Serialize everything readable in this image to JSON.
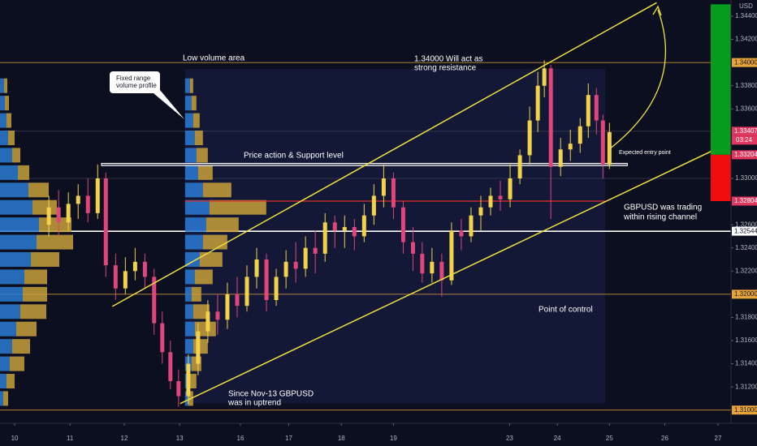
{
  "chart_data": {
    "type": "candlestick",
    "currency": "USD",
    "countdown": "03:24",
    "xlim": [
      -0.27,
      13.2
    ],
    "ylim": [
      1.309,
      1.3454
    ],
    "xticks": [
      {
        "value": 0,
        "label": "10"
      },
      {
        "value": 1.02,
        "label": "11"
      },
      {
        "value": 2.02,
        "label": "12"
      },
      {
        "value": 3.04,
        "label": "13"
      },
      {
        "value": 4.16,
        "label": "16"
      },
      {
        "value": 5.05,
        "label": "17"
      },
      {
        "value": 6.02,
        "label": "18"
      },
      {
        "value": 6.98,
        "label": "19"
      },
      {
        "value": 9.12,
        "label": "23"
      },
      {
        "value": 10.0,
        "label": "24"
      },
      {
        "value": 10.96,
        "label": "25"
      },
      {
        "value": 11.98,
        "label": "26"
      },
      {
        "value": 12.96,
        "label": "27"
      }
    ],
    "yticks": [
      {
        "value": 1.344,
        "label": "1.34400"
      },
      {
        "value": 1.342,
        "label": "1.34200"
      },
      {
        "value": 1.338,
        "label": "1.33800"
      },
      {
        "value": 1.336,
        "label": "1.33600"
      },
      {
        "value": 1.33,
        "label": "1.33000"
      },
      {
        "value": 1.326,
        "label": "1.32600"
      },
      {
        "value": 1.324,
        "label": "1.32400"
      },
      {
        "value": 1.322,
        "label": "1.32200"
      },
      {
        "value": 1.318,
        "label": "1.31800"
      },
      {
        "value": 1.316,
        "label": "1.31600"
      },
      {
        "value": 1.314,
        "label": "1.31400"
      },
      {
        "value": 1.312,
        "label": "1.31200"
      }
    ],
    "price_tags": [
      {
        "value": 1.34,
        "label": "1.34000",
        "color": "#e8a33a"
      },
      {
        "value": 1.33407,
        "label": "1.33407",
        "color": "#e0365f"
      },
      {
        "value": 1.33204,
        "label": "1.33204",
        "color": "#e0365f"
      },
      {
        "value": 1.32804,
        "label": "1.32804",
        "color": "#e0365f"
      },
      {
        "value": 1.32544,
        "label": "1.32544",
        "color": "#ffffff"
      },
      {
        "value": 1.32,
        "label": "1.32000",
        "color": "#e8a33a"
      },
      {
        "value": 1.31,
        "label": "1.31000",
        "color": "#e8a33a"
      }
    ],
    "up_color": "#f2d24a",
    "down_color": "#e0457b",
    "x": [
      0.63,
      0.81,
      0.99,
      1.17,
      1.35,
      1.53,
      1.68,
      1.86,
      2.04,
      2.22,
      2.4,
      2.57,
      2.72,
      2.87,
      3.02,
      3.2,
      3.38,
      3.56,
      3.74,
      3.92,
      4.1,
      4.28,
      4.46,
      4.64,
      4.82,
      5.0,
      5.18,
      5.36,
      5.54,
      5.72,
      5.9,
      6.08,
      6.26,
      6.44,
      6.62,
      6.8,
      6.98,
      7.16,
      7.34,
      7.51,
      7.69,
      7.87,
      8.05,
      8.23,
      8.41,
      8.59,
      8.77,
      8.95,
      9.13,
      9.31,
      9.49,
      9.64,
      9.76,
      9.88,
      10.06,
      10.24,
      10.42,
      10.57,
      10.72,
      10.84,
      10.96
    ],
    "open": [
      1.326,
      1.3275,
      1.3262,
      1.3278,
      1.3285,
      1.327,
      1.33,
      1.3225,
      1.3205,
      1.322,
      1.3228,
      1.3215,
      1.3175,
      1.315,
      1.3125,
      1.3112,
      1.314,
      1.3168,
      1.3185,
      1.3178,
      1.32,
      1.319,
      1.3215,
      1.323,
      1.3195,
      1.3215,
      1.3228,
      1.3222,
      1.324,
      1.3235,
      1.3262,
      1.3255,
      1.3258,
      1.325,
      1.3268,
      1.3285,
      1.33,
      1.3275,
      1.3245,
      1.3235,
      1.3218,
      1.3228,
      1.3212,
      1.3255,
      1.325,
      1.3268,
      1.3275,
      1.3285,
      1.3282,
      1.33,
      1.332,
      1.335,
      1.338,
      1.3395,
      1.331,
      1.3325,
      1.333,
      1.3345,
      1.3372,
      1.335,
      1.3312
    ],
    "high": [
      1.3285,
      1.329,
      1.3288,
      1.3295,
      1.33,
      1.3312,
      1.3305,
      1.3235,
      1.3232,
      1.324,
      1.3235,
      1.3222,
      1.3185,
      1.316,
      1.3135,
      1.3148,
      1.3175,
      1.3195,
      1.32,
      1.321,
      1.3215,
      1.3225,
      1.324,
      1.3235,
      1.3222,
      1.3238,
      1.3245,
      1.325,
      1.3255,
      1.327,
      1.3268,
      1.3268,
      1.3265,
      1.3278,
      1.3295,
      1.3312,
      1.3305,
      1.328,
      1.3258,
      1.3245,
      1.324,
      1.3235,
      1.3262,
      1.3265,
      1.3275,
      1.3285,
      1.3292,
      1.3298,
      1.3312,
      1.3325,
      1.3362,
      1.3392,
      1.3402,
      1.3398,
      1.3335,
      1.3342,
      1.3352,
      1.3382,
      1.3378,
      1.3355,
      1.3348
    ],
    "low": [
      1.325,
      1.325,
      1.3255,
      1.3265,
      1.3262,
      1.3265,
      1.3215,
      1.3195,
      1.32,
      1.3212,
      1.3205,
      1.3165,
      1.314,
      1.3118,
      1.3103,
      1.3105,
      1.313,
      1.3158,
      1.3165,
      1.317,
      1.318,
      1.3185,
      1.3205,
      1.3185,
      1.319,
      1.3205,
      1.321,
      1.3215,
      1.3218,
      1.3228,
      1.324,
      1.324,
      1.3238,
      1.3245,
      1.326,
      1.3275,
      1.3265,
      1.3235,
      1.322,
      1.321,
      1.321,
      1.3198,
      1.3208,
      1.3238,
      1.3245,
      1.3255,
      1.3268,
      1.3272,
      1.3275,
      1.3295,
      1.3312,
      1.334,
      1.337,
      1.3265,
      1.3302,
      1.3315,
      1.3322,
      1.3335,
      1.3338,
      1.33,
      1.3308
    ],
    "close": [
      1.3275,
      1.3262,
      1.3278,
      1.3285,
      1.327,
      1.33,
      1.3225,
      1.3205,
      1.322,
      1.3228,
      1.3215,
      1.3175,
      1.315,
      1.3125,
      1.3112,
      1.314,
      1.3168,
      1.3185,
      1.3178,
      1.32,
      1.319,
      1.3215,
      1.323,
      1.3195,
      1.3215,
      1.3228,
      1.3222,
      1.324,
      1.3235,
      1.3262,
      1.3255,
      1.3258,
      1.325,
      1.3268,
      1.3285,
      1.33,
      1.3275,
      1.3245,
      1.3235,
      1.3218,
      1.3228,
      1.3212,
      1.3255,
      1.325,
      1.3268,
      1.3275,
      1.3285,
      1.3282,
      1.33,
      1.332,
      1.335,
      1.338,
      1.3395,
      1.331,
      1.3325,
      1.333,
      1.3345,
      1.3372,
      1.335,
      1.3312,
      1.334
    ],
    "profile_levels": [
      1.338,
      1.3365,
      1.335,
      1.3335,
      1.332,
      1.3305,
      1.329,
      1.3275,
      1.326,
      1.3245,
      1.323,
      1.3215,
      1.32,
      1.3185,
      1.317,
      1.3155,
      1.314,
      1.3125,
      1.311
    ],
    "left_profile": {
      "buy": [
        5,
        6,
        8,
        10,
        15,
        22,
        35,
        40,
        48,
        45,
        38,
        30,
        28,
        25,
        20,
        15,
        12,
        8,
        4
      ],
      "sell": [
        4,
        5,
        6,
        8,
        10,
        14,
        25,
        30,
        40,
        45,
        35,
        28,
        30,
        32,
        25,
        22,
        18,
        10,
        6
      ]
    },
    "range_profile": {
      "from_x": 3.14,
      "to_x": 10.88,
      "top": 1.33944,
      "bottom": 1.31056,
      "buy": [
        6,
        8,
        10,
        12,
        14,
        16,
        22,
        30,
        26,
        22,
        18,
        12,
        8,
        10,
        12,
        10,
        8,
        6,
        4
      ],
      "sell": [
        4,
        6,
        8,
        10,
        14,
        18,
        35,
        70,
        40,
        30,
        28,
        22,
        12,
        20,
        26,
        18,
        12,
        8,
        6
      ]
    },
    "lines": [
      {
        "value": 1.34,
        "color": "#e8a33a"
      },
      {
        "value": 1.33407,
        "color": "#3a3f55"
      },
      {
        "value": 1.33,
        "color": "#3a3f55"
      },
      {
        "value": 1.32,
        "color": "#e8a33a"
      },
      {
        "value": 1.31,
        "color": "#e8a33a"
      },
      {
        "value": 1.32544,
        "color": "#ffffff"
      }
    ],
    "poc_line": {
      "value": 1.32804,
      "from_x": 3.14,
      "to_x": 10.88,
      "color": "#e0302f"
    },
    "support_zone": {
      "top": 1.3313,
      "bottom": 1.3311,
      "from_x": 1.6,
      "to_x": 11.29
    },
    "channel": [
      {
        "x": [
          1.8,
          11.83
        ],
        "y": [
          1.31895,
          1.34517
        ]
      },
      {
        "x": [
          3.05,
          13.2
        ],
        "y": [
          1.31056,
          1.33315
        ]
      }
    ],
    "position": {
      "target": 1.34503,
      "entry": 1.33204,
      "stop": 1.32804
    },
    "annotations": {
      "low_volume": "Low volume area",
      "resistance": [
        "1.34000 Will act as",
        "strong resistance"
      ],
      "callout": [
        "Fixed range",
        "volume profile"
      ],
      "support": "Price action & Support level",
      "entry": "Expected entry point",
      "channel": [
        "GBPUSD was trading",
        "within  rising channel"
      ],
      "poc": "Point of control",
      "uptrend": [
        "Since Nov-13 GBPUSD",
        "was in uptrend"
      ]
    }
  }
}
